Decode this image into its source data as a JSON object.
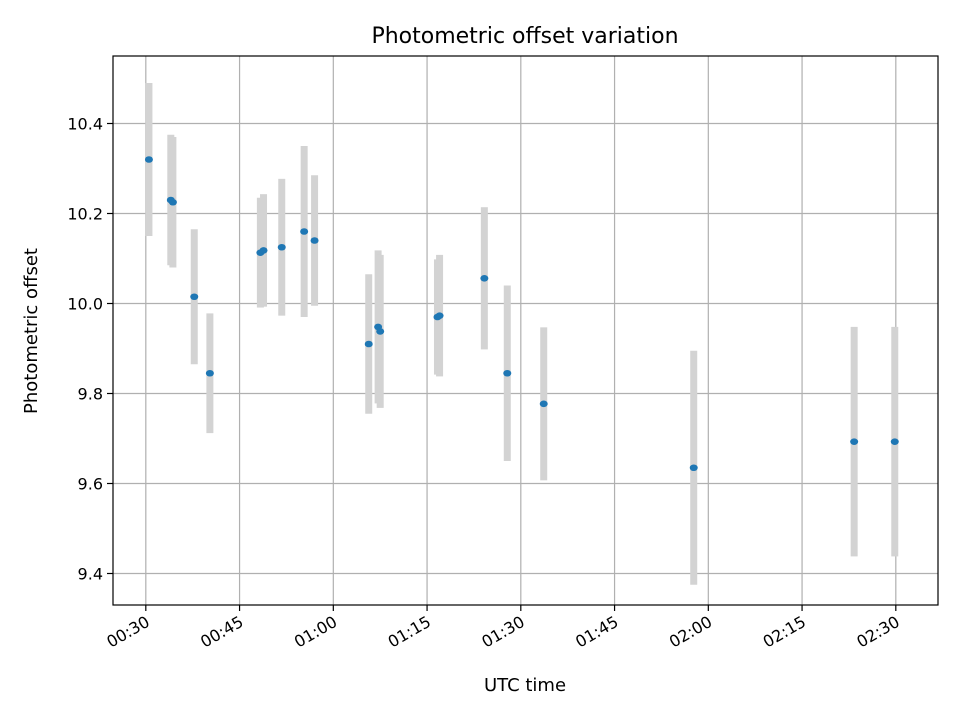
{
  "chart_data": {
    "type": "scatter",
    "title": "Photometric offset variation",
    "xlabel": "UTC time",
    "ylabel": "Photometric offset",
    "x_tick_labels": [
      "00:30",
      "00:45",
      "01:00",
      "01:15",
      "01:30",
      "01:45",
      "02:00",
      "02:15",
      "02:30"
    ],
    "y_tick_labels": [
      "9.4",
      "9.6",
      "9.8",
      "10.0",
      "10.2",
      "10.4"
    ],
    "x_ticks": [
      "00:30",
      "00:45",
      "01:00",
      "01:15",
      "01:30",
      "01:45",
      "02:00",
      "02:15",
      "02:30"
    ],
    "y_ticks": [
      9.4,
      9.6,
      9.8,
      10.0,
      10.2,
      10.4
    ],
    "xlim": [
      "00:24:45",
      "02:36:45"
    ],
    "ylim": [
      9.33,
      10.55
    ],
    "grid": true,
    "colors": {
      "points": "#1f77b4",
      "errorbars": "#d3d3d3"
    },
    "points": [
      {
        "x": "00:30:30",
        "y": 10.32,
        "err": 0.17
      },
      {
        "x": "00:34:00",
        "y": 10.23,
        "err": 0.145
      },
      {
        "x": "00:34:20",
        "y": 10.225,
        "err": 0.145
      },
      {
        "x": "00:37:45",
        "y": 10.015,
        "err": 0.15
      },
      {
        "x": "00:40:15",
        "y": 9.845,
        "err": 0.133
      },
      {
        "x": "00:48:20",
        "y": 10.113,
        "err": 0.122
      },
      {
        "x": "00:48:50",
        "y": 10.118,
        "err": 0.125
      },
      {
        "x": "00:51:45",
        "y": 10.125,
        "err": 0.152
      },
      {
        "x": "00:55:20",
        "y": 10.16,
        "err": 0.19
      },
      {
        "x": "00:57:00",
        "y": 10.14,
        "err": 0.145
      },
      {
        "x": "01:05:40",
        "y": 9.91,
        "err": 0.155
      },
      {
        "x": "01:07:10",
        "y": 9.948,
        "err": 0.17
      },
      {
        "x": "01:07:30",
        "y": 9.938,
        "err": 0.17
      },
      {
        "x": "01:16:40",
        "y": 9.97,
        "err": 0.128
      },
      {
        "x": "01:17:00",
        "y": 9.973,
        "err": 0.135
      },
      {
        "x": "01:24:10",
        "y": 10.056,
        "err": 0.158
      },
      {
        "x": "01:27:50",
        "y": 9.845,
        "err": 0.195
      },
      {
        "x": "01:33:40",
        "y": 9.777,
        "err": 0.17
      },
      {
        "x": "01:57:40",
        "y": 9.635,
        "err": 0.26
      },
      {
        "x": "02:23:20",
        "y": 9.693,
        "err": 0.255
      },
      {
        "x": "02:29:50",
        "y": 9.693,
        "err": 0.255
      }
    ]
  }
}
